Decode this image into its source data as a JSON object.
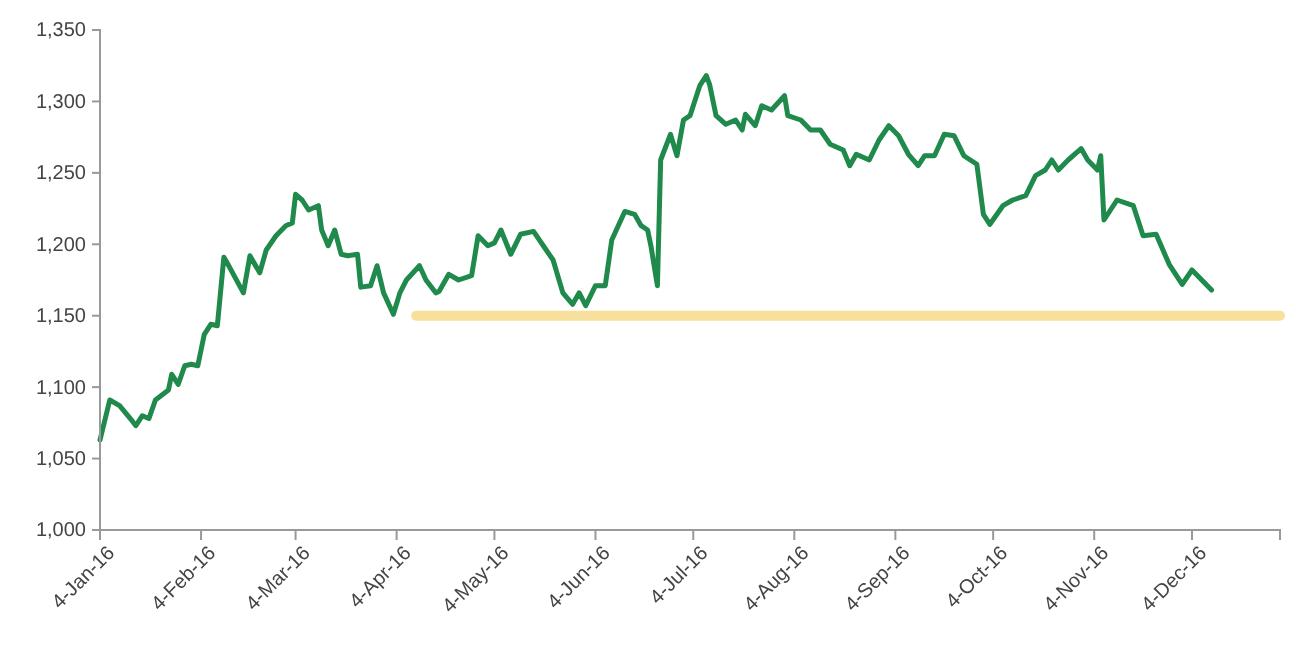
{
  "chart_data": {
    "type": "line",
    "xlim": [
      "2016-01-04",
      "2016-12-31"
    ],
    "ylim": [
      1000,
      1350
    ],
    "xticks": [
      {
        "value": "2016-01-04",
        "label": "4-Jan-16"
      },
      {
        "value": "2016-02-04",
        "label": "4-Feb-16"
      },
      {
        "value": "2016-03-04",
        "label": "4-Mar-16"
      },
      {
        "value": "2016-04-04",
        "label": "4-Apr-16"
      },
      {
        "value": "2016-05-04",
        "label": "4-May-16"
      },
      {
        "value": "2016-06-04",
        "label": "4-Jun-16"
      },
      {
        "value": "2016-07-04",
        "label": "4-Jul-16"
      },
      {
        "value": "2016-08-04",
        "label": "4-Aug-16"
      },
      {
        "value": "2016-09-04",
        "label": "4-Sep-16"
      },
      {
        "value": "2016-10-04",
        "label": "4-Oct-16"
      },
      {
        "value": "2016-11-04",
        "label": "4-Nov-16"
      },
      {
        "value": "2016-12-04",
        "label": "4-Dec-16"
      }
    ],
    "yticks": [
      {
        "value": 1000,
        "label": "1,000"
      },
      {
        "value": 1050,
        "label": "1,050"
      },
      {
        "value": 1100,
        "label": "1,100"
      },
      {
        "value": 1150,
        "label": "1,150"
      },
      {
        "value": 1200,
        "label": "1,200"
      },
      {
        "value": 1250,
        "label": "1,250"
      },
      {
        "value": 1300,
        "label": "1,300"
      },
      {
        "value": 1350,
        "label": "1,350"
      }
    ],
    "series": [
      {
        "color": "#1f8a4c",
        "x": [
          "2016-01-04",
          "2016-01-07",
          "2016-01-10",
          "2016-01-14",
          "2016-01-15",
          "2016-01-17",
          "2016-01-19",
          "2016-01-21",
          "2016-01-25",
          "2016-01-26",
          "2016-01-28",
          "2016-01-30",
          "2016-02-01",
          "2016-02-03",
          "2016-02-05",
          "2016-02-07",
          "2016-02-09",
          "2016-02-11",
          "2016-02-12",
          "2016-02-17",
          "2016-02-19",
          "2016-02-22",
          "2016-02-24",
          "2016-02-27",
          "2016-03-01",
          "2016-03-03",
          "2016-03-04",
          "2016-03-06",
          "2016-03-08",
          "2016-03-11",
          "2016-03-12",
          "2016-03-14",
          "2016-03-16",
          "2016-03-18",
          "2016-03-20",
          "2016-03-23",
          "2016-03-24",
          "2016-03-27",
          "2016-03-29",
          "2016-03-31",
          "2016-04-03",
          "2016-04-05",
          "2016-04-07",
          "2016-04-11",
          "2016-04-13",
          "2016-04-16",
          "2016-04-17",
          "2016-04-20",
          "2016-04-23",
          "2016-04-27",
          "2016-04-29",
          "2016-05-02",
          "2016-05-04",
          "2016-05-06",
          "2016-05-09",
          "2016-05-12",
          "2016-05-16",
          "2016-05-19",
          "2016-05-22",
          "2016-05-25",
          "2016-05-28",
          "2016-05-30",
          "2016-06-01",
          "2016-06-04",
          "2016-06-07",
          "2016-06-09",
          "2016-06-13",
          "2016-06-16",
          "2016-06-18",
          "2016-06-20",
          "2016-06-21",
          "2016-06-23",
          "2016-06-24",
          "2016-06-27",
          "2016-06-29",
          "2016-07-01",
          "2016-07-03",
          "2016-07-06",
          "2016-07-08",
          "2016-07-09",
          "2016-07-11",
          "2016-07-14",
          "2016-07-17",
          "2016-07-19",
          "2016-07-20",
          "2016-07-23",
          "2016-07-25",
          "2016-07-28",
          "2016-08-01",
          "2016-08-02",
          "2016-08-06",
          "2016-08-09",
          "2016-08-12",
          "2016-08-15",
          "2016-08-19",
          "2016-08-21",
          "2016-08-23",
          "2016-08-27",
          "2016-08-30",
          "2016-09-02",
          "2016-09-05",
          "2016-09-08",
          "2016-09-11",
          "2016-09-13",
          "2016-09-16",
          "2016-09-19",
          "2016-09-22",
          "2016-09-25",
          "2016-09-29",
          "2016-10-01",
          "2016-10-03",
          "2016-10-07",
          "2016-10-10",
          "2016-10-14",
          "2016-10-17",
          "2016-10-20",
          "2016-10-22",
          "2016-10-24",
          "2016-10-27",
          "2016-10-31",
          "2016-11-02",
          "2016-11-05",
          "2016-11-06",
          "2016-11-07",
          "2016-11-11",
          "2016-11-16",
          "2016-11-19",
          "2016-11-23",
          "2016-11-27",
          "2016-12-01",
          "2016-12-04",
          "2016-12-07",
          "2016-12-10"
        ],
        "values": [
          1063,
          1091,
          1087,
          1076,
          1073,
          1080,
          1078,
          1091,
          1098,
          1109,
          1102,
          1115,
          1116,
          1115,
          1137,
          1144,
          1143,
          1191,
          1187,
          1166,
          1192,
          1180,
          1196,
          1206,
          1213,
          1215,
          1235,
          1231,
          1224,
          1227,
          1210,
          1199,
          1210,
          1193,
          1192,
          1193,
          1170,
          1171,
          1185,
          1166,
          1151,
          1166,
          1175,
          1185,
          1175,
          1166,
          1167,
          1179,
          1175,
          1178,
          1206,
          1199,
          1201,
          1210,
          1193,
          1207,
          1209,
          1199,
          1189,
          1166,
          1158,
          1166,
          1157,
          1171,
          1171,
          1203,
          1223,
          1221,
          1213,
          1210,
          1199,
          1171,
          1259,
          1277,
          1262,
          1287,
          1290,
          1311,
          1318,
          1312,
          1290,
          1284,
          1287,
          1280,
          1291,
          1283,
          1297,
          1294,
          1304,
          1290,
          1287,
          1280,
          1280,
          1270,
          1266,
          1255,
          1263,
          1259,
          1273,
          1283,
          1276,
          1263,
          1255,
          1262,
          1262,
          1277,
          1276,
          1262,
          1256,
          1221,
          1214,
          1227,
          1231,
          1234,
          1248,
          1252,
          1259,
          1252,
          1259,
          1267,
          1259,
          1252,
          1262,
          1217,
          1231,
          1227,
          1206,
          1207,
          1186,
          1172,
          1182,
          1175,
          1168
        ]
      },
      {
        "color": "#f7df9c",
        "x": [
          "2016-04-10",
          "2016-12-31"
        ],
        "values": [
          1150,
          1150
        ]
      }
    ]
  }
}
